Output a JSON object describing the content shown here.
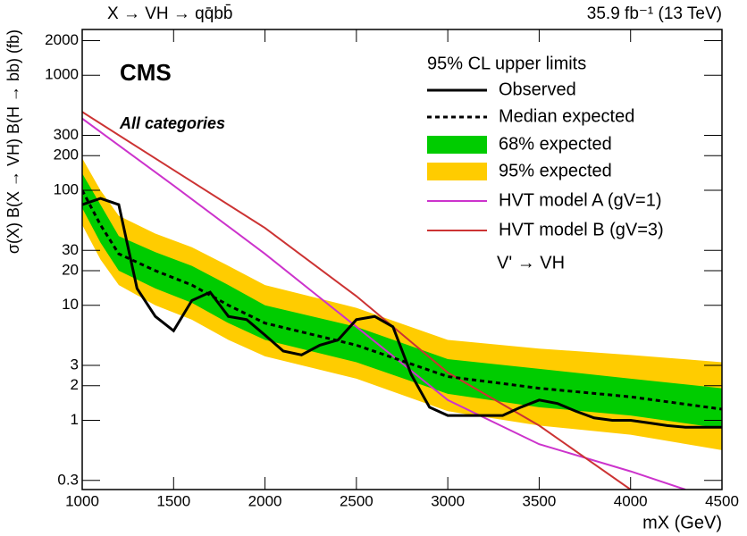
{
  "chart_data": {
    "type": "limit",
    "title": "X → VH → qq̄bb̄",
    "subtitle": "35.9 fb⁻¹ (13 TeV)",
    "annotations": [
      "CMS",
      "All categories",
      "V' → VH"
    ],
    "legend_title": "95% CL upper limits",
    "xlabel": "mX (GeV)",
    "ylabel": "σ(X) B(X → VH) B(H → bb) (fb)",
    "log_y": true,
    "xlim": [
      1000,
      4500
    ],
    "xticks": [
      1000,
      1500,
      2000,
      2500,
      3000,
      3500,
      4000,
      4500
    ],
    "ylim": [
      0.25,
      2500
    ],
    "yticks": [
      0.3,
      1,
      2,
      3,
      10,
      20,
      30,
      100,
      200,
      300,
      1000,
      2000
    ],
    "bands": [
      {
        "name": "95% expected",
        "color": "#ffcc00",
        "x": [
          1000,
          1100,
          1200,
          1400,
          1600,
          1800,
          2000,
          2500,
          3000,
          3500,
          4000,
          4500
        ],
        "lower": [
          50,
          25,
          15,
          10,
          7.5,
          5,
          3.6,
          2.3,
          1.2,
          0.9,
          0.75,
          0.55
        ],
        "upper": [
          190,
          100,
          60,
          42,
          32,
          22,
          15,
          9.5,
          5,
          4.2,
          3.7,
          3.2
        ]
      },
      {
        "name": "68% expected",
        "color": "#00cc00",
        "x": [
          1000,
          1100,
          1200,
          1400,
          1600,
          1800,
          2000,
          2500,
          3000,
          3500,
          4000,
          4500
        ],
        "lower": [
          70,
          35,
          20,
          14,
          10.5,
          7,
          5,
          3.2,
          1.7,
          1.3,
          1.1,
          0.85
        ],
        "upper": [
          140,
          75,
          40,
          29,
          22,
          15,
          10,
          6.5,
          3.4,
          2.8,
          2.3,
          1.9
        ]
      }
    ],
    "series": [
      {
        "name": "HVT model A (gV=1)",
        "color": "#cc33cc",
        "width": 2,
        "x": [
          1000,
          1500,
          2000,
          2500,
          3000,
          3500,
          4000,
          4300
        ],
        "values": [
          420,
          110,
          28,
          6.5,
          1.5,
          0.62,
          0.36,
          0.25
        ]
      },
      {
        "name": "HVT model B (gV=3)",
        "color": "#cc3333",
        "width": 2,
        "x": [
          1000,
          1500,
          2000,
          2500,
          3000,
          3500,
          4000
        ],
        "values": [
          480,
          150,
          47,
          12,
          2.6,
          0.9,
          0.25
        ]
      },
      {
        "name": "Median expected",
        "color": "#000000",
        "width": 3,
        "dashed": true,
        "x": [
          1000,
          1100,
          1200,
          1400,
          1600,
          1800,
          2000,
          2500,
          3000,
          3500,
          4000,
          4500
        ],
        "values": [
          100,
          50,
          28,
          20,
          15,
          10,
          7,
          4.5,
          2.4,
          1.9,
          1.6,
          1.25
        ]
      },
      {
        "name": "Observed",
        "color": "#000000",
        "width": 3,
        "x": [
          1000,
          1100,
          1200,
          1300,
          1400,
          1500,
          1600,
          1700,
          1800,
          1900,
          2000,
          2100,
          2200,
          2300,
          2400,
          2500,
          2600,
          2700,
          2800,
          2900,
          3000,
          3100,
          3200,
          3300,
          3400,
          3500,
          3600,
          3700,
          3800,
          3900,
          4000,
          4100,
          4200,
          4300,
          4400,
          4500
        ],
        "values": [
          75,
          85,
          75,
          14,
          8,
          6,
          11,
          13,
          8,
          7.5,
          5.5,
          4,
          3.7,
          4.5,
          5,
          7.5,
          8,
          6.5,
          2.5,
          1.3,
          1.1,
          1.1,
          1.1,
          1.1,
          1.3,
          1.5,
          1.4,
          1.2,
          1.05,
          1.0,
          1.0,
          0.95,
          0.9,
          0.87,
          0.87,
          0.87
        ]
      }
    ]
  }
}
